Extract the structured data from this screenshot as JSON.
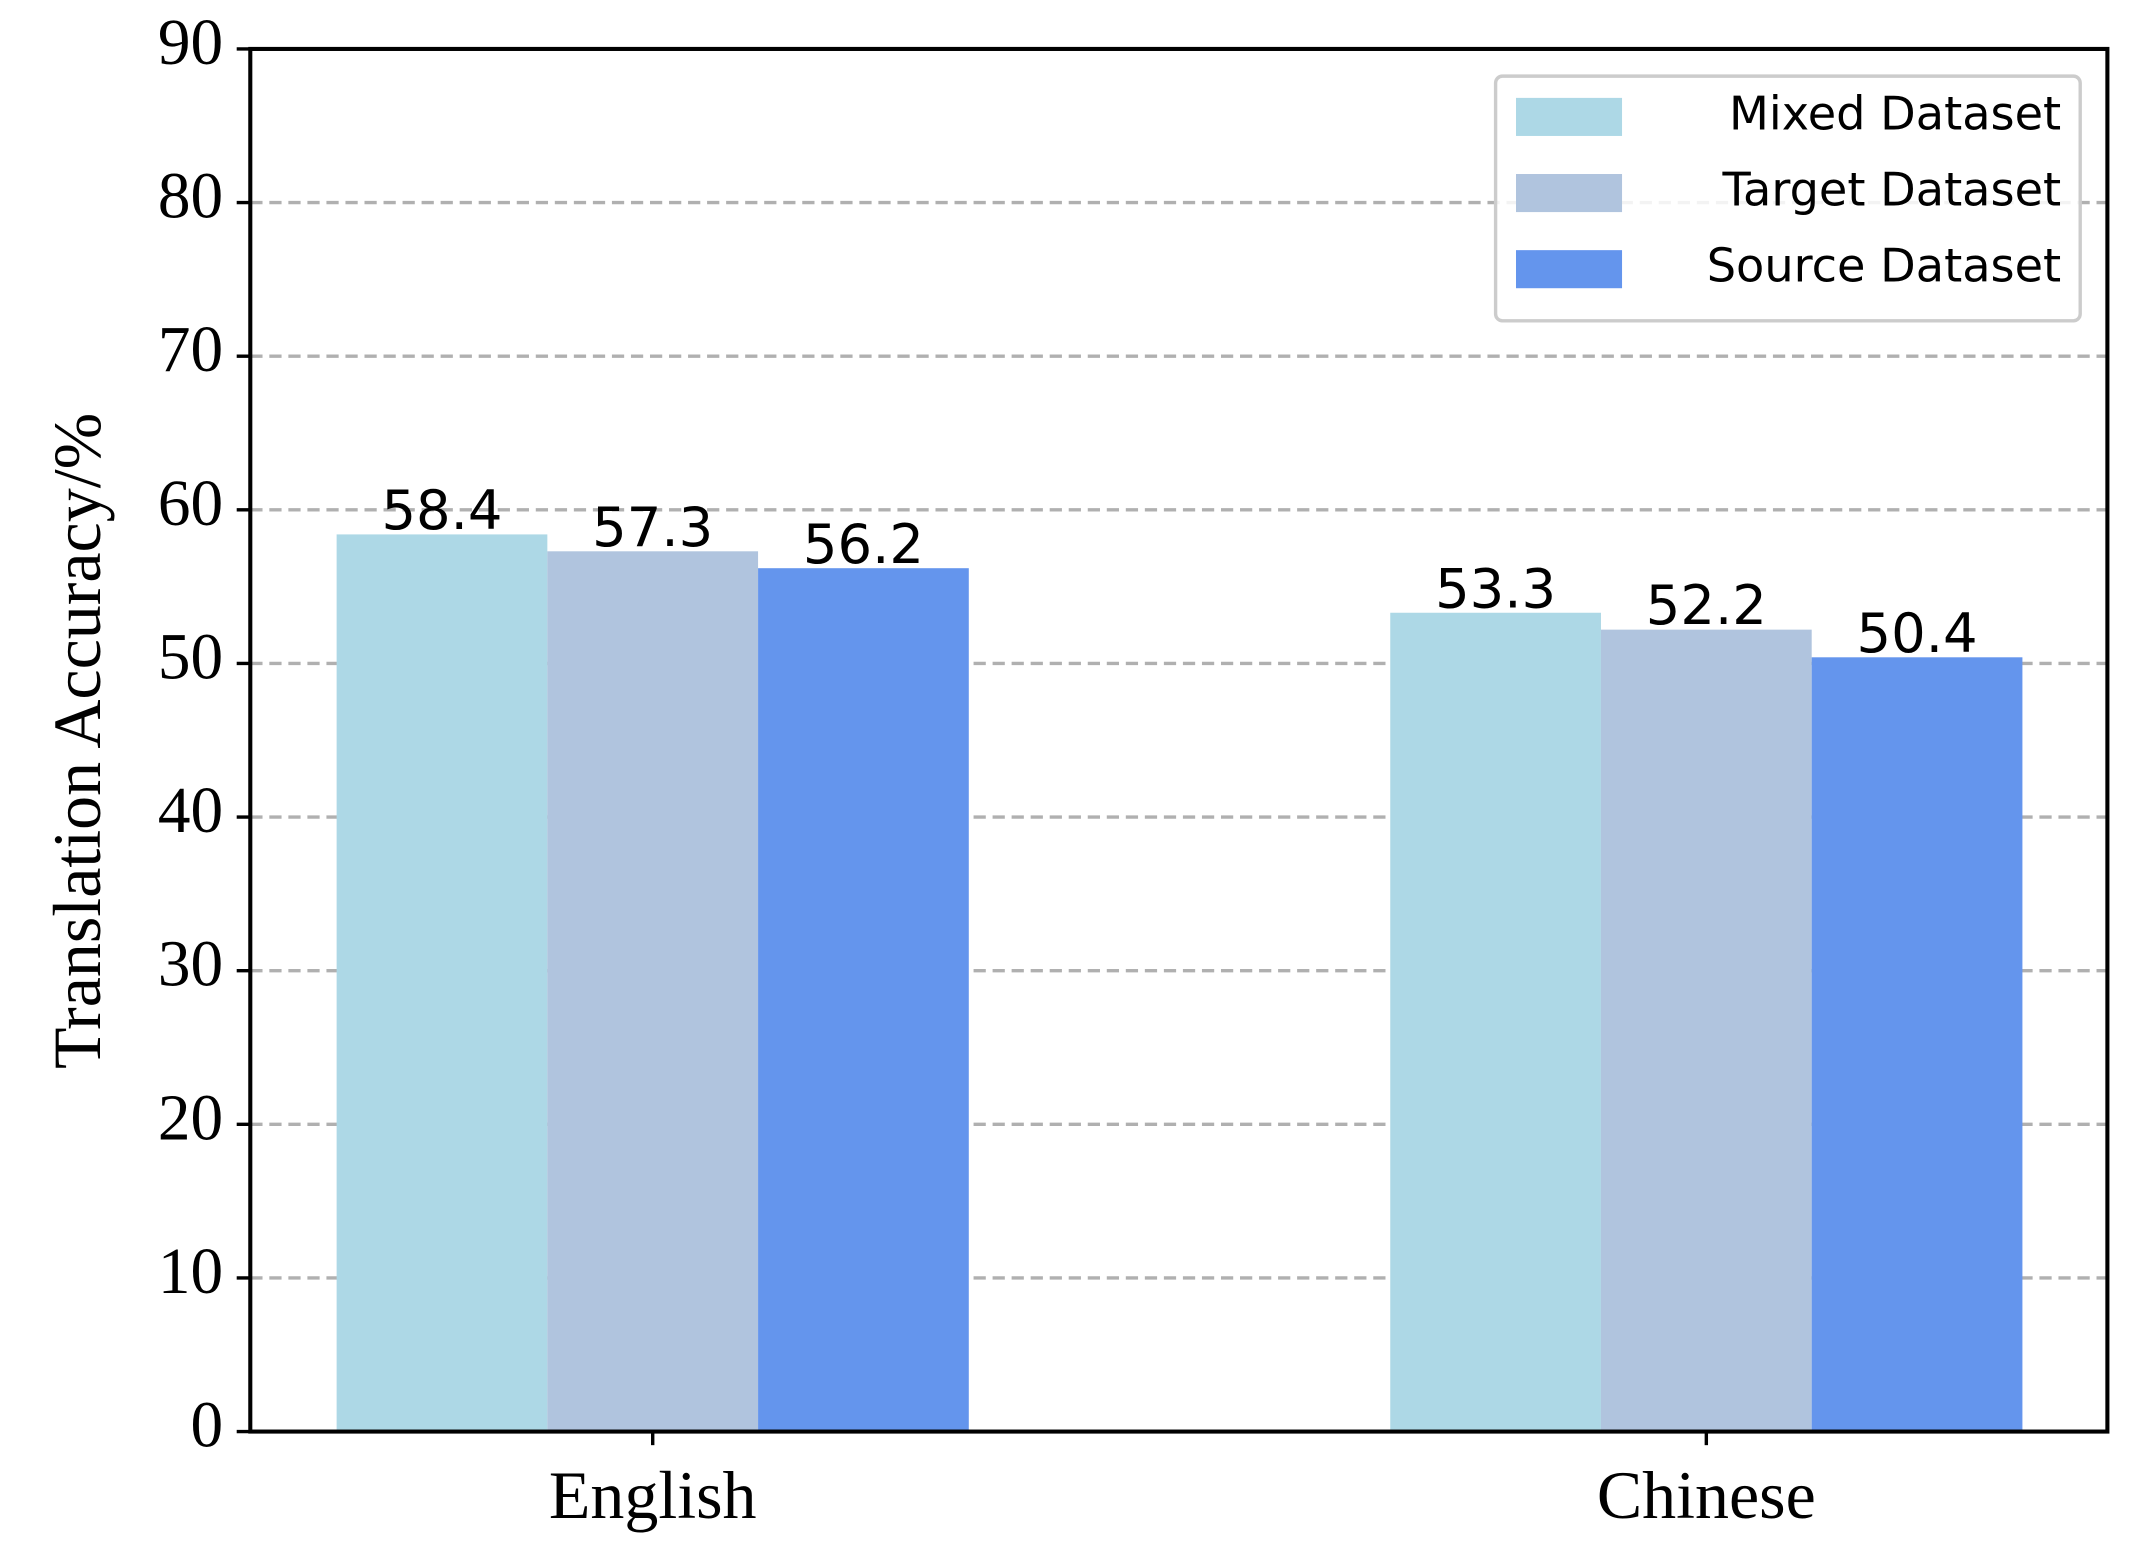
{
  "chart_data": {
    "type": "bar",
    "y_label": "Translation Accuracy/%",
    "categories": [
      "English",
      "Chinese"
    ],
    "series": [
      {
        "name": "Mixed Dataset",
        "color": "#add8e6",
        "values": [
          58.4,
          53.3
        ]
      },
      {
        "name": "Target Dataset",
        "color": "#b0c4de",
        "values": [
          57.3,
          52.2
        ]
      },
      {
        "name": "Source Dataset",
        "color": "#6495ed",
        "values": [
          56.2,
          50.4
        ]
      }
    ],
    "ylim": [
      0,
      90
    ],
    "yticks": [
      0,
      10,
      20,
      30,
      40,
      50,
      60,
      70,
      80,
      90
    ],
    "grid": true,
    "legend": "upper right"
  }
}
